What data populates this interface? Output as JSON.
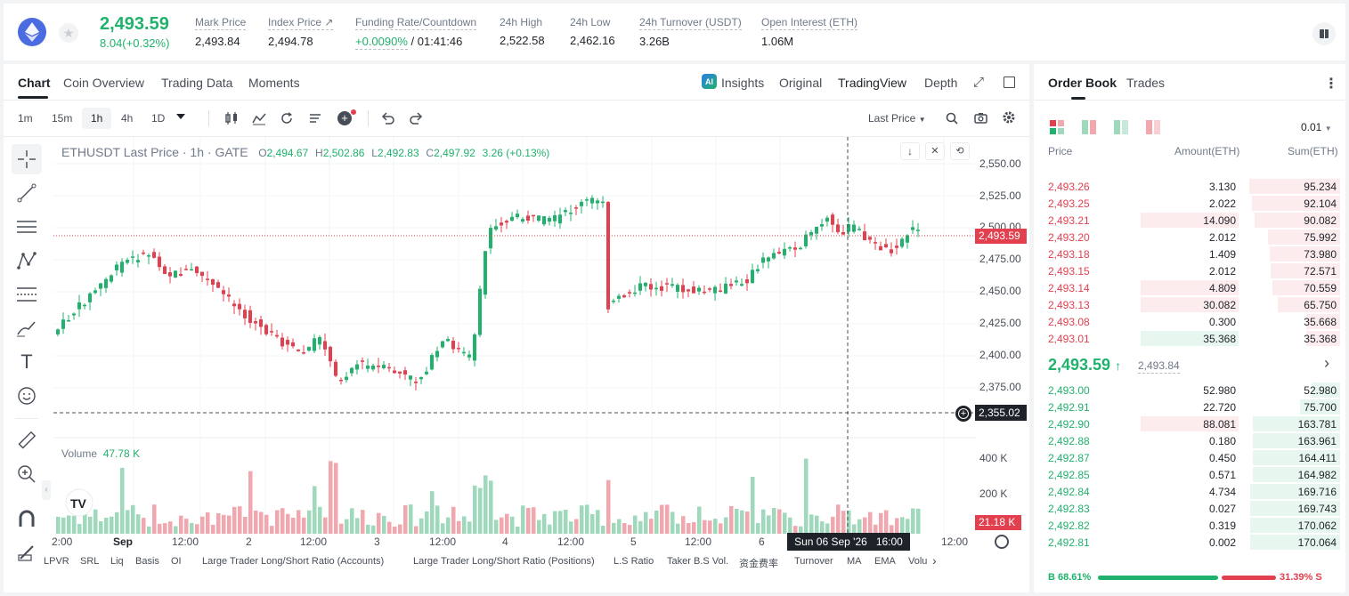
{
  "header": {
    "last_price": "2,493.59",
    "change": "8.04(+0.32%)",
    "stats": [
      {
        "label": "Mark Price",
        "value": "2,493.84"
      },
      {
        "label": "Index Price ↗",
        "value": "2,494.78"
      },
      {
        "label": "Funding Rate/Countdown",
        "value_green": "+0.0090%",
        "value_rest": " / 01:41:46"
      },
      {
        "label": "24h High",
        "value": "2,522.58"
      },
      {
        "label": "24h Low",
        "value": "2,462.16"
      },
      {
        "label": "24h Turnover (USDT)",
        "value": "3.26B"
      },
      {
        "label": "Open Interest (ETH)",
        "value": "1.06M"
      }
    ]
  },
  "chart_tabs": [
    "Chart",
    "Coin Overview",
    "Trading Data",
    "Moments"
  ],
  "view_tabs": {
    "insights": "Insights",
    "original": "Original",
    "tradingview": "TradingView",
    "depth": "Depth"
  },
  "timeframes": [
    "1m",
    "15m",
    "1h",
    "4h",
    "1D"
  ],
  "price_source": "Last Price",
  "legend": {
    "symbol": "ETHUSDT Last Price · 1h · GATE",
    "o_label": "O",
    "o": "2,494.67",
    "h_label": "H",
    "h": "2,502.86",
    "l_label": "L",
    "l": "2,492.83",
    "c_label": "C",
    "c": "2,497.92",
    "chg": "3.26 (+0.13%)"
  },
  "volume_legend": {
    "label": "Volume",
    "value": "47.78 K"
  },
  "price_axis": [
    "2,550.00",
    "2,525.00",
    "2,500.00",
    "2,475.00",
    "2,450.00",
    "2,425.00",
    "2,400.00",
    "2,375.00"
  ],
  "volume_axis": [
    "400 K",
    "200 K"
  ],
  "current_price_tag": "2,493.59",
  "crosshair_price_tag": "2,355.02",
  "volume_tag": "21.18 K",
  "time_axis": [
    "2:00",
    "Sep",
    "12:00",
    "2",
    "12:00",
    "3",
    "12:00",
    "4",
    "12:00",
    "5",
    "12:00",
    "6",
    "12:00"
  ],
  "crosshair_time": "Sun 06 Sep '26   16:00",
  "bottom_tabs": [
    "LPVR",
    "SRL",
    "Liq",
    "Basis",
    "OI",
    "Large Trader Long/Short Ratio (Accounts)",
    "Large Trader Long/Short Ratio (Positions)",
    "L.S Ratio",
    "Taker B.S Vol.",
    "资金费率",
    "Turnover",
    "MA",
    "EMA",
    "Volu"
  ],
  "orderbook": {
    "tabs": [
      "Order Book",
      "Trades"
    ],
    "precision": "0.01",
    "headers": {
      "price": "Price",
      "amount": "Amount(ETH)",
      "sum": "Sum(ETH)"
    },
    "asks": [
      {
        "price": "2,493.26",
        "amount": "3.130",
        "sum": "95.234",
        "depth": 1.0,
        "amt": 0.0
      },
      {
        "price": "2,493.25",
        "amount": "2.022",
        "sum": "92.104",
        "depth": 0.967,
        "amt": 0.0
      },
      {
        "price": "2,493.21",
        "amount": "14.090",
        "sum": "90.082",
        "depth": 0.946,
        "amt": 0.05
      },
      {
        "price": "2,493.20",
        "amount": "2.012",
        "sum": "75.992",
        "depth": 0.798,
        "amt": 0.0
      },
      {
        "price": "2,493.18",
        "amount": "1.409",
        "sum": "73.980",
        "depth": 0.777,
        "amt": 0.0
      },
      {
        "price": "2,493.15",
        "amount": "2.012",
        "sum": "72.571",
        "depth": 0.762,
        "amt": 0.0
      },
      {
        "price": "2,493.14",
        "amount": "4.809",
        "sum": "70.559",
        "depth": 0.741,
        "amt": 1.0
      },
      {
        "price": "2,493.13",
        "amount": "30.082",
        "sum": "65.750",
        "depth": 0.69,
        "amt": 1.0
      },
      {
        "price": "2,493.08",
        "amount": "0.300",
        "sum": "35.668",
        "depth": 0.374,
        "amt": 0.0
      },
      {
        "price": "2,493.01",
        "amount": "35.368",
        "sum": "35.368",
        "depth": 0.371,
        "amt": 1.0,
        "amt_green": true
      }
    ],
    "mid_price": "2,493.59",
    "mid_mark": "2,493.84",
    "bids": [
      {
        "price": "2,493.00",
        "amount": "52.980",
        "sum": "52.980",
        "depth": 0.31,
        "amt": 0.0
      },
      {
        "price": "2,492.91",
        "amount": "22.720",
        "sum": "75.700",
        "depth": 0.443,
        "amt": 0.0
      },
      {
        "price": "2,492.90",
        "amount": "88.081",
        "sum": "163.781",
        "depth": 0.958,
        "amt": 1.0,
        "amt_red": true
      },
      {
        "price": "2,492.88",
        "amount": "0.180",
        "sum": "163.961",
        "depth": 0.959,
        "amt": 0.0
      },
      {
        "price": "2,492.87",
        "amount": "0.450",
        "sum": "164.411",
        "depth": 0.962,
        "amt": 0.0
      },
      {
        "price": "2,492.85",
        "amount": "0.571",
        "sum": "164.982",
        "depth": 0.965,
        "amt": 0.0
      },
      {
        "price": "2,492.84",
        "amount": "4.734",
        "sum": "169.716",
        "depth": 0.993,
        "amt": 0.0
      },
      {
        "price": "2,492.83",
        "amount": "0.027",
        "sum": "169.743",
        "depth": 0.993,
        "amt": 0.0
      },
      {
        "price": "2,492.82",
        "amount": "0.319",
        "sum": "170.062",
        "depth": 0.995,
        "amt": 0.0
      },
      {
        "price": "2,492.81",
        "amount": "0.002",
        "sum": "170.064",
        "depth": 0.995,
        "amt": 0.0
      }
    ],
    "ratio": {
      "buy": "B 68.61%",
      "sell": "31.39% S",
      "buy_frac": 0.6861
    }
  },
  "colors": {
    "up": "#20b26c",
    "down": "#e3404f",
    "up_vol": "#9ed9bc",
    "down_vol": "#f2a6ae"
  }
}
